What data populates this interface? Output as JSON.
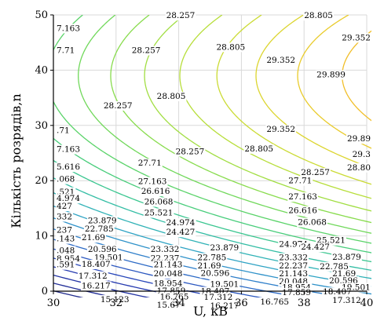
{
  "chart_data": {
    "type": "contour",
    "xlabel": "U, кВ",
    "ylabel": "Кількість розрядів,n",
    "xlim": [
      30,
      40
    ],
    "ylim": [
      0,
      50
    ],
    "x_ticks": [
      "30",
      "32",
      "34",
      "36",
      "38",
      "40"
    ],
    "y_ticks": [
      "0",
      "10",
      "20",
      "30",
      "40",
      "50"
    ],
    "grid": true,
    "function_model": {
      "form": "z = a + b*U + c*U^2 + d*n + e*n^2",
      "a": -10.55,
      "b": 1.155,
      "c": -0.01,
      "d": 0.4,
      "e": -0.00513
    },
    "levels": [
      {
        "value": 15.123,
        "label": "15.123",
        "color": "#202a8c"
      },
      {
        "value": 15.67,
        "label": "15.67",
        "color": "#232f98"
      },
      {
        "value": 16.217,
        "label": "16.217",
        "color": "#2434a4"
      },
      {
        "value": 16.765,
        "label": "16.765",
        "color": "#273bb0"
      },
      {
        "value": 17.312,
        "label": "17.312",
        "color": "#2a48ba"
      },
      {
        "value": 17.859,
        "label": "17.859",
        "color": "#2c58c0"
      },
      {
        "value": 18.407,
        "label": "18.407",
        "color": "#2e6bc6"
      },
      {
        "value": 18.954,
        "label": "18.954",
        "color": "#2f7fca"
      },
      {
        "value": 19.501,
        "label": "19.501",
        "color": "#2f92c9"
      },
      {
        "value": 20.048,
        "label": "20.048",
        "color": "#2fa3c4"
      },
      {
        "value": 20.596,
        "label": "20.596",
        "color": "#30b2b6"
      },
      {
        "value": 21.143,
        "label": "21.143",
        "color": "#33bda4"
      },
      {
        "value": 21.69,
        "label": "21.69",
        "color": "#3ac690"
      },
      {
        "value": 22.237,
        "label": "22.237",
        "color": "#48cd7b"
      },
      {
        "value": 22.785,
        "label": "22.785",
        "color": "#5ad369"
      },
      {
        "value": 23.332,
        "label": "23.332",
        "color": "#70d85a"
      },
      {
        "value": 23.879,
        "label": "23.879",
        "color": "#88dc4d"
      },
      {
        "value": 24.427,
        "label": "24.427",
        "color": "#a1de42"
      },
      {
        "value": 24.974,
        "label": "24.974",
        "color": "#b7de3a"
      },
      {
        "value": 25.521,
        "label": "25.521",
        "color": "#cbdb34"
      },
      {
        "value": 26.068,
        "label": "26.068",
        "color": "#dcd52f"
      },
      {
        "value": 26.616,
        "label": "26.616",
        "color": "#e9cb2b"
      },
      {
        "value": 27.163,
        "label": "27.163",
        "color": "#f1be28"
      },
      {
        "value": 27.71,
        "label": "27.71",
        "color": "#f5af26"
      },
      {
        "value": 28.257,
        "label": "28.257",
        "color": "#f5a024"
      },
      {
        "value": 28.805,
        "label": "28.805",
        "color": "#f39023"
      },
      {
        "value": 29.352,
        "label": "29.352",
        "color": "#f07b23"
      },
      {
        "value": 29.899,
        "label": "29.899",
        "color": "#ec6424"
      }
    ],
    "labels_on_chart": [
      {
        "text": "7.163",
        "x": 30.1,
        "y": 47.6
      },
      {
        "text": "28.257",
        "x": 33.6,
        "y": 49.9
      },
      {
        "text": "28.805",
        "x": 38.0,
        "y": 49.9
      },
      {
        "text": "29.352",
        "x": 39.8,
        "y": 45.9
      },
      {
        "text": "7.71",
        "x": 30.1,
        "y": 43.6
      },
      {
        "text": "28.257",
        "x": 32.5,
        "y": 43.6
      },
      {
        "text": "28.805",
        "x": 35.2,
        "y": 44.2
      },
      {
        "text": "29.352",
        "x": 36.8,
        "y": 41.8
      },
      {
        "text": "29.899",
        "x": 38.4,
        "y": 39.2
      },
      {
        "text": "28.257",
        "x": 31.6,
        "y": 33.6
      },
      {
        "text": "28.805",
        "x": 33.3,
        "y": 35.3
      },
      {
        "text": "29.352",
        "x": 36.8,
        "y": 29.3
      },
      {
        "text": "29.89",
        "x": 39.7,
        "y": 27.6
      },
      {
        "text": ".71",
        "x": 30.1,
        "y": 29.1
      },
      {
        "text": "7.163",
        "x": 30.1,
        "y": 25.7
      },
      {
        "text": "28.257",
        "x": 33.9,
        "y": 25.3
      },
      {
        "text": "28.805",
        "x": 36.1,
        "y": 25.8
      },
      {
        "text": "29.3",
        "x": 39.8,
        "y": 24.8
      },
      {
        "text": "28.80",
        "x": 39.8,
        "y": 22.4
      },
      {
        "text": "27.71",
        "x": 32.7,
        "y": 23.2
      },
      {
        "text": "27.163",
        "x": 32.7,
        "y": 19.9
      },
      {
        "text": "28.257",
        "x": 37.9,
        "y": 21.5
      },
      {
        "text": "5.616",
        "x": 30.1,
        "y": 22.5
      },
      {
        "text": ".068",
        "x": 30.1,
        "y": 20.3
      },
      {
        "text": "26.616",
        "x": 32.8,
        "y": 18.1
      },
      {
        "text": "27.71",
        "x": 37.5,
        "y": 20.0
      },
      {
        "text": "27.163",
        "x": 37.5,
        "y": 17.1
      },
      {
        "text": ".521",
        "x": 30.1,
        "y": 18.0
      },
      {
        "text": "4.974",
        "x": 30.1,
        "y": 16.8
      },
      {
        "text": "26.068",
        "x": 32.9,
        "y": 16.2
      },
      {
        "text": "26.616",
        "x": 37.5,
        "y": 14.6
      },
      {
        "text": "427",
        "x": 30.1,
        "y": 15.4
      },
      {
        "text": "25.521",
        "x": 32.9,
        "y": 14.2
      },
      {
        "text": "24.974",
        "x": 33.6,
        "y": 12.4
      },
      {
        "text": "26.068",
        "x": 37.8,
        "y": 12.5
      },
      {
        "text": "24.427",
        "x": 33.6,
        "y": 10.7
      },
      {
        "text": "24.974",
        "x": 37.2,
        "y": 8.5
      },
      {
        "text": "25.521",
        "x": 38.4,
        "y": 9.2
      },
      {
        "text": "24.427",
        "x": 37.9,
        "y": 8.0
      },
      {
        "text": "332",
        "x": 30.1,
        "y": 13.5
      },
      {
        "text": "23.879",
        "x": 31.1,
        "y": 12.8
      },
      {
        "text": "23.332",
        "x": 33.1,
        "y": 7.6
      },
      {
        "text": "23.879",
        "x": 35.0,
        "y": 7.9
      },
      {
        "text": "23.332",
        "x": 37.2,
        "y": 6.1
      },
      {
        "text": "23.879",
        "x": 38.9,
        "y": 6.2
      },
      {
        "text": "237",
        "x": 30.1,
        "y": 11.1
      },
      {
        "text": "22.785",
        "x": 31.0,
        "y": 11.3
      },
      {
        "text": "22.237",
        "x": 33.1,
        "y": 6.0
      },
      {
        "text": "22.785",
        "x": 34.6,
        "y": 6.1
      },
      {
        "text": "22.237",
        "x": 37.2,
        "y": 4.6
      },
      {
        "text": "22.785",
        "x": 38.5,
        "y": 4.5
      },
      {
        "text": ".143",
        "x": 30.1,
        "y": 9.5
      },
      {
        "text": "21.69",
        "x": 30.9,
        "y": 9.7
      },
      {
        "text": "21.143",
        "x": 33.2,
        "y": 4.8
      },
      {
        "text": "21.69",
        "x": 34.6,
        "y": 4.6
      },
      {
        "text": "21.143",
        "x": 37.2,
        "y": 3.2
      },
      {
        "text": "21.69",
        "x": 38.9,
        "y": 3.2
      },
      {
        "text": ".048",
        "x": 30.1,
        "y": 7.4
      },
      {
        "text": "20.596",
        "x": 31.1,
        "y": 7.6
      },
      {
        "text": "20.048",
        "x": 33.2,
        "y": 3.2
      },
      {
        "text": "20.596",
        "x": 34.7,
        "y": 3.3
      },
      {
        "text": "20.048",
        "x": 37.2,
        "y": 1.8
      },
      {
        "text": "20.596",
        "x": 38.8,
        "y": 1.9
      },
      {
        "text": "8.954",
        "x": 30.1,
        "y": 5.9
      },
      {
        "text": "19.501",
        "x": 31.3,
        "y": 6.1
      },
      {
        "text": "18.954",
        "x": 33.2,
        "y": 1.4
      },
      {
        "text": "19.501",
        "x": 35.0,
        "y": 1.3
      },
      {
        "text": "18.954",
        "x": 37.3,
        "y": 0.7
      },
      {
        "text": "19.501",
        "x": 39.2,
        "y": 0.7
      },
      {
        "text": ".591",
        "x": 30.1,
        "y": 4.8
      },
      {
        "text": "18.407",
        "x": 30.9,
        "y": 4.9
      },
      {
        "text": "17.312",
        "x": 30.8,
        "y": 2.8
      },
      {
        "text": "17.859",
        "x": 33.3,
        "y": 0.1
      },
      {
        "text": "18.407",
        "x": 34.7,
        "y": 0.0
      },
      {
        "text": "17.859",
        "x": 37.3,
        "y": -0.2
      },
      {
        "text": "18.407",
        "x": 38.6,
        "y": -0.1
      },
      {
        "text": "16.217",
        "x": 30.9,
        "y": 1.0
      },
      {
        "text": "16.765",
        "x": 33.4,
        "y": -1.0
      },
      {
        "text": "17.312",
        "x": 34.8,
        "y": -1.1
      },
      {
        "text": "17.312",
        "x": 38.9,
        "y": -1.6
      },
      {
        "text": "16.765",
        "x": 36.6,
        "y": -1.9
      },
      {
        "text": "15.123",
        "x": 31.5,
        "y": -1.5
      },
      {
        "text": "15.67",
        "x": 33.3,
        "y": -2.5
      },
      {
        "text": "16.217",
        "x": 35.0,
        "y": -2.6
      }
    ]
  }
}
